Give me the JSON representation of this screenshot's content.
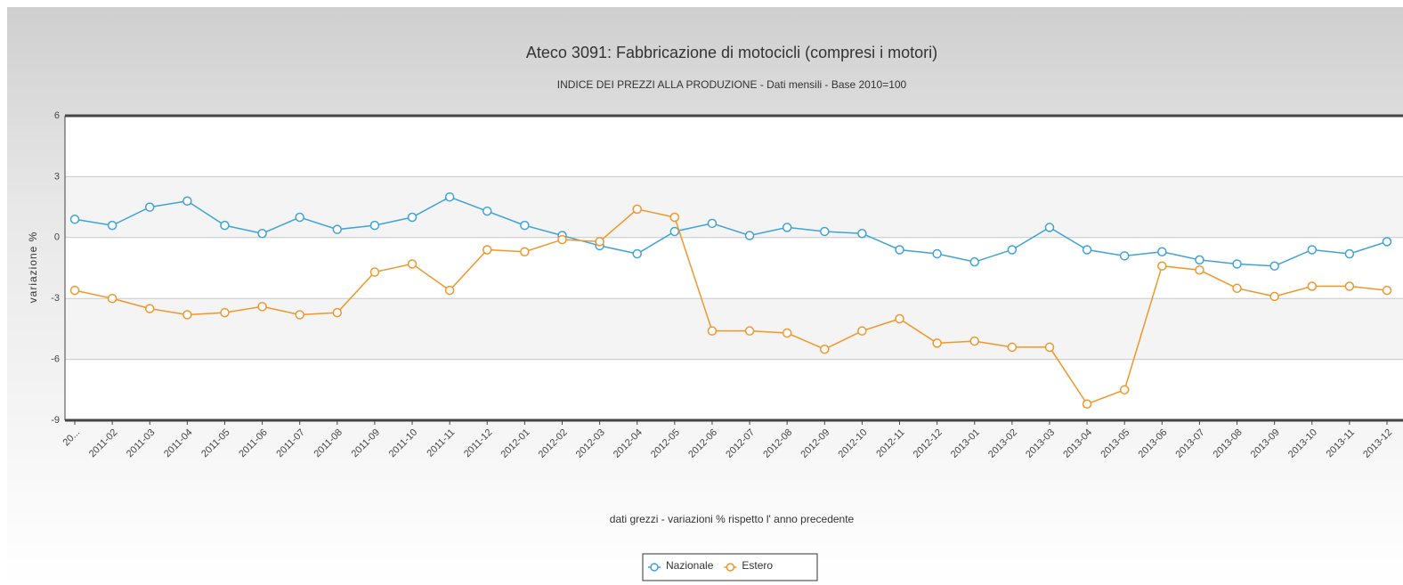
{
  "chart_data": {
    "type": "line",
    "title": "Ateco 3091: Fabbricazione di motocicli (compresi i motori)",
    "subtitle": "INDICE DEI PREZZI ALLA PRODUZIONE - Dati mensili - Base 2010=100",
    "x_label": "dati grezzi - variazioni % rispetto l' anno precedente",
    "y_label": "variazione %",
    "categories": [
      "20...",
      "2011-02",
      "2011-03",
      "2011-04",
      "2011-05",
      "2011-06",
      "2011-07",
      "2011-08",
      "2011-09",
      "2011-10",
      "2011-11",
      "2011-12",
      "2012-01",
      "2012-02",
      "2012-03",
      "2012-04",
      "2012-05",
      "2012-06",
      "2012-07",
      "2012-08",
      "2012-09",
      "2012-10",
      "2012-11",
      "2012-12",
      "2013-01",
      "2013-02",
      "2013-03",
      "2013-04",
      "2013-05",
      "2013-06",
      "2013-07",
      "2013-08",
      "2013-09",
      "2013-10",
      "2013-11",
      "2013-12"
    ],
    "series": [
      {
        "name": "Nazionale",
        "color": "#3fa3d6",
        "values": [
          0.9,
          0.6,
          1.5,
          1.8,
          0.6,
          0.2,
          1.0,
          0.4,
          0.6,
          1.0,
          2.0,
          1.3,
          0.6,
          0.1,
          -0.4,
          -0.8,
          0.3,
          0.7,
          0.1,
          0.5,
          0.3,
          0.2,
          -0.6,
          -0.8,
          -1.2,
          -0.6,
          0.5,
          -0.6,
          -0.9,
          -0.7,
          -1.1,
          -1.3,
          -1.4,
          -0.6,
          -0.8,
          -0.2
        ]
      },
      {
        "name": "Estero",
        "color": "#f0962a",
        "values": [
          -2.6,
          -3.0,
          -3.5,
          -3.8,
          -3.7,
          -3.4,
          -3.8,
          -3.7,
          -1.7,
          -1.3,
          -2.6,
          -0.6,
          -0.7,
          -0.1,
          -0.2,
          1.4,
          1.0,
          -4.6,
          -4.6,
          -4.7,
          -5.5,
          -4.6,
          -4.0,
          -5.2,
          -5.1,
          -5.4,
          -5.4,
          -8.2,
          -7.5,
          -1.4,
          -1.6,
          -2.5,
          -2.9,
          -2.4,
          -2.4,
          -2.6
        ]
      }
    ],
    "ylim": [
      -9,
      6
    ],
    "yticks": [
      -9,
      -6,
      -3,
      0,
      3,
      6
    ],
    "grid": true,
    "legend": "bottom"
  }
}
